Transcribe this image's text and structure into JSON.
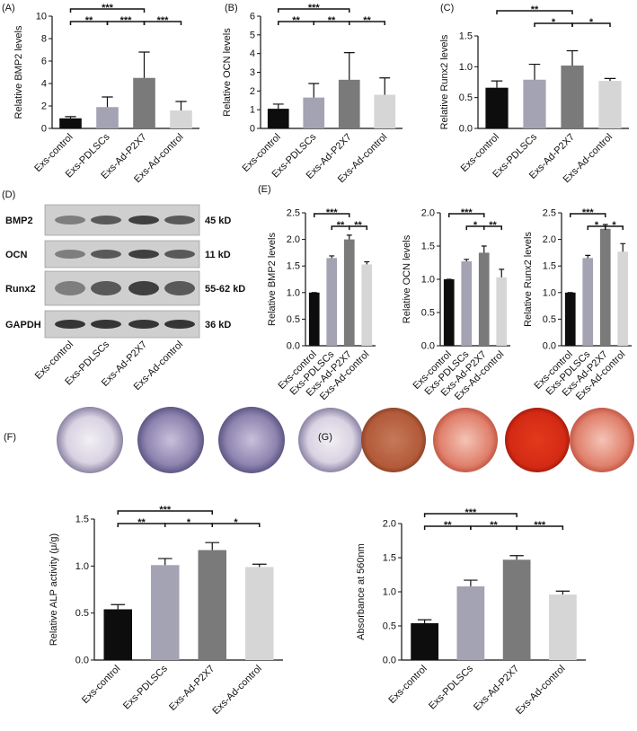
{
  "chart_data": [
    {
      "type": "bar",
      "panel": "(A)",
      "y_label": "Relative BMP2 levels",
      "categories": [
        "Exs-control",
        "Exs-PDLSCs",
        "Exs-Ad-P2X7",
        "Exs-Ad-control"
      ],
      "values": [
        0.9,
        1.9,
        4.5,
        1.6
      ],
      "errors": [
        0.15,
        0.9,
        2.3,
        0.8
      ],
      "colors": [
        "#0d0d0d",
        "#a3a3b3",
        "#7a7a7a",
        "#d6d6d6"
      ],
      "ylim": [
        0,
        10
      ],
      "yticks": [
        0,
        2,
        4,
        6,
        8,
        10
      ],
      "annotations": [
        {
          "between": [
            "Exs-control",
            "Exs-Ad-P2X7"
          ],
          "label": "***"
        },
        {
          "between": [
            "Exs-control",
            "Exs-PDLSCs"
          ],
          "label": "**"
        },
        {
          "between": [
            "Exs-PDLSCs",
            "Exs-Ad-P2X7"
          ],
          "label": "***"
        },
        {
          "between": [
            "Exs-Ad-P2X7",
            "Exs-Ad-control"
          ],
          "label": "***"
        }
      ]
    },
    {
      "type": "bar",
      "panel": "(B)",
      "y_label": "Relative OCN levels",
      "categories": [
        "Exs-control",
        "Exs-PDLSCs",
        "Exs-Ad-P2X7",
        "Exs-Ad-control"
      ],
      "values": [
        1.05,
        1.65,
        2.6,
        1.8
      ],
      "errors": [
        0.25,
        0.75,
        1.45,
        0.9
      ],
      "colors": [
        "#0d0d0d",
        "#a3a3b3",
        "#7a7a7a",
        "#d6d6d6"
      ],
      "ylim": [
        0,
        6
      ],
      "yticks": [
        0,
        1,
        2,
        3,
        4,
        5,
        6
      ],
      "annotations": [
        {
          "between": [
            "Exs-control",
            "Exs-Ad-P2X7"
          ],
          "label": "***"
        },
        {
          "between": [
            "Exs-control",
            "Exs-PDLSCs"
          ],
          "label": "**"
        },
        {
          "between": [
            "Exs-PDLSCs",
            "Exs-Ad-P2X7"
          ],
          "label": "**"
        },
        {
          "between": [
            "Exs-Ad-P2X7",
            "Exs-Ad-control"
          ],
          "label": "**"
        }
      ]
    },
    {
      "type": "bar",
      "panel": "(C)",
      "y_label": "Relative Runx2 levels",
      "categories": [
        "Exs-control",
        "Exs-PDLSCs",
        "Exs-Ad-P2X7",
        "Exs-Ad-control"
      ],
      "values": [
        0.66,
        0.79,
        1.02,
        0.77
      ],
      "errors": [
        0.11,
        0.25,
        0.24,
        0.04
      ],
      "colors": [
        "#0d0d0d",
        "#a3a3b3",
        "#7a7a7a",
        "#d6d6d6"
      ],
      "ylim": [
        0,
        1.5
      ],
      "yticks": [
        {
          "value": 0,
          "label": "0.0"
        },
        0.5,
        {
          "value": 1,
          "label": "1.0"
        },
        1.5
      ],
      "annotations": [
        {
          "between": [
            "Exs-control",
            "Exs-Ad-P2X7"
          ],
          "label": "**"
        },
        {
          "between": [
            "Exs-PDLSCs",
            "Exs-Ad-P2X7"
          ],
          "label": "*"
        },
        {
          "between": [
            "Exs-Ad-P2X7",
            "Exs-Ad-control"
          ],
          "label": "*"
        }
      ]
    },
    {
      "type": "bar",
      "panel": "(E)",
      "y_label": "Relative BMP2 levels",
      "categories": [
        "Exs-control",
        "Exs-PDLSCs",
        "Exs-Ad-P2X7",
        "Exs-Ad-control"
      ],
      "values": [
        1.0,
        1.65,
        2.0,
        1.53
      ],
      "errors": [
        0,
        0.04,
        0.08,
        0.05
      ],
      "colors": [
        "#0d0d0d",
        "#a3a3b3",
        "#7a7a7a",
        "#d6d6d6"
      ],
      "ylim": [
        0,
        2.5
      ],
      "yticks": [
        {
          "value": 0,
          "label": "0.0"
        },
        0.5,
        {
          "value": 1,
          "label": "1.0"
        },
        1.5,
        {
          "value": 2,
          "label": "2.0"
        },
        2.5
      ],
      "annotations": [
        {
          "between": [
            "Exs-control",
            "Exs-Ad-P2X7"
          ],
          "label": "***"
        },
        {
          "between": [
            "Exs-PDLSCs",
            "Exs-Ad-P2X7"
          ],
          "label": "**"
        },
        {
          "between": [
            "Exs-Ad-P2X7",
            "Exs-Ad-control"
          ],
          "label": "**"
        }
      ]
    },
    {
      "type": "bar",
      "y_label": "Relative OCN levels",
      "categories": [
        "Exs-control",
        "Exs-PDLSCs",
        "Exs-Ad-P2X7",
        "Exs-Ad-control"
      ],
      "values": [
        1.0,
        1.27,
        1.4,
        1.03
      ],
      "errors": [
        0,
        0.03,
        0.1,
        0.12
      ],
      "colors": [
        "#0d0d0d",
        "#a3a3b3",
        "#7a7a7a",
        "#d6d6d6"
      ],
      "ylim": [
        0,
        2
      ],
      "yticks": [
        {
          "value": 0,
          "label": "0.0"
        },
        0.5,
        {
          "value": 1,
          "label": "1.0"
        },
        1.5,
        {
          "value": 2,
          "label": "2.0"
        }
      ],
      "annotations": [
        {
          "between": [
            "Exs-control",
            "Exs-Ad-P2X7"
          ],
          "label": "***"
        },
        {
          "between": [
            "Exs-PDLSCs",
            "Exs-Ad-P2X7"
          ],
          "label": "*"
        },
        {
          "between": [
            "Exs-Ad-P2X7",
            "Exs-Ad-control"
          ],
          "label": "**"
        }
      ]
    },
    {
      "type": "bar",
      "y_label": "Relative Runx2 levels",
      "categories": [
        "Exs-control",
        "Exs-PDLSCs",
        "Exs-Ad-P2X7",
        "Exs-Ad-control"
      ],
      "values": [
        1.0,
        1.65,
        2.2,
        1.77
      ],
      "errors": [
        0,
        0.05,
        0.08,
        0.15
      ],
      "colors": [
        "#0d0d0d",
        "#a3a3b3",
        "#7a7a7a",
        "#d6d6d6"
      ],
      "ylim": [
        0,
        2.5
      ],
      "yticks": [
        {
          "value": 0,
          "label": "0.0"
        },
        0.5,
        {
          "value": 1,
          "label": "1.0"
        },
        1.5,
        {
          "value": 2,
          "label": "2.0"
        },
        2.5
      ],
      "annotations": [
        {
          "between": [
            "Exs-control",
            "Exs-Ad-P2X7"
          ],
          "label": "***"
        },
        {
          "between": [
            "Exs-PDLSCs",
            "Exs-Ad-P2X7"
          ],
          "label": "*"
        },
        {
          "between": [
            "Exs-Ad-P2X7",
            "Exs-Ad-control"
          ],
          "label": "*"
        }
      ]
    },
    {
      "type": "bar",
      "panel": "(F)",
      "y_label": "Relative ALP activity (μ/g)",
      "categories": [
        "Exs-control",
        "Exs-PDLSCs",
        "Exs-Ad-P2X7",
        "Exs-Ad-control"
      ],
      "values": [
        0.54,
        1.01,
        1.17,
        0.99
      ],
      "errors": [
        0.05,
        0.07,
        0.08,
        0.03
      ],
      "colors": [
        "#0d0d0d",
        "#a3a3b3",
        "#7a7a7a",
        "#d6d6d6"
      ],
      "ylim": [
        0,
        1.5
      ],
      "yticks": [
        {
          "value": 0,
          "label": "0.0"
        },
        0.5,
        {
          "value": 1,
          "label": "1.0"
        },
        1.5
      ],
      "annotations": [
        {
          "between": [
            "Exs-control",
            "Exs-Ad-P2X7"
          ],
          "label": "***"
        },
        {
          "between": [
            "Exs-control",
            "Exs-PDLSCs"
          ],
          "label": "**"
        },
        {
          "between": [
            "Exs-PDLSCs",
            "Exs-Ad-P2X7"
          ],
          "label": "*"
        },
        {
          "between": [
            "Exs-Ad-P2X7",
            "Exs-Ad-control"
          ],
          "label": "*"
        }
      ]
    },
    {
      "type": "bar",
      "panel": "(G)",
      "y_label": "Absorbance at 560nm",
      "categories": [
        "Exs-control",
        "Exs-PDLSCs",
        "Exs-Ad-P2X7",
        "Exs-Ad-control"
      ],
      "values": [
        0.54,
        1.08,
        1.47,
        0.96
      ],
      "errors": [
        0.05,
        0.09,
        0.06,
        0.05
      ],
      "colors": [
        "#0d0d0d",
        "#a3a3b3",
        "#7a7a7a",
        "#d6d6d6"
      ],
      "ylim": [
        0,
        2
      ],
      "yticks": [
        {
          "value": 0,
          "label": "0.0"
        },
        0.5,
        {
          "value": 1,
          "label": "1.0"
        },
        1.5,
        {
          "value": 2,
          "label": "2.0"
        }
      ],
      "annotations": [
        {
          "between": [
            "Exs-control",
            "Exs-Ad-P2X7"
          ],
          "label": "***"
        },
        {
          "between": [
            "Exs-control",
            "Exs-PDLSCs"
          ],
          "label": "**"
        },
        {
          "between": [
            "Exs-PDLSCs",
            "Exs-Ad-P2X7"
          ],
          "label": "**"
        },
        {
          "between": [
            "Exs-Ad-P2X7",
            "Exs-Ad-control"
          ],
          "label": "***"
        }
      ]
    }
  ],
  "blot": {
    "panel": "(D)",
    "bands": [
      "BMP2",
      "OCN",
      "Runx2",
      "GAPDH"
    ],
    "sizes": [
      "45 kD",
      "11 kD",
      "55-62 kD",
      "36 kD"
    ],
    "categories": [
      "Exs-control",
      "Exs-PDLSCs",
      "Exs-Ad-P2X7",
      "Exs-Ad-control"
    ]
  }
}
